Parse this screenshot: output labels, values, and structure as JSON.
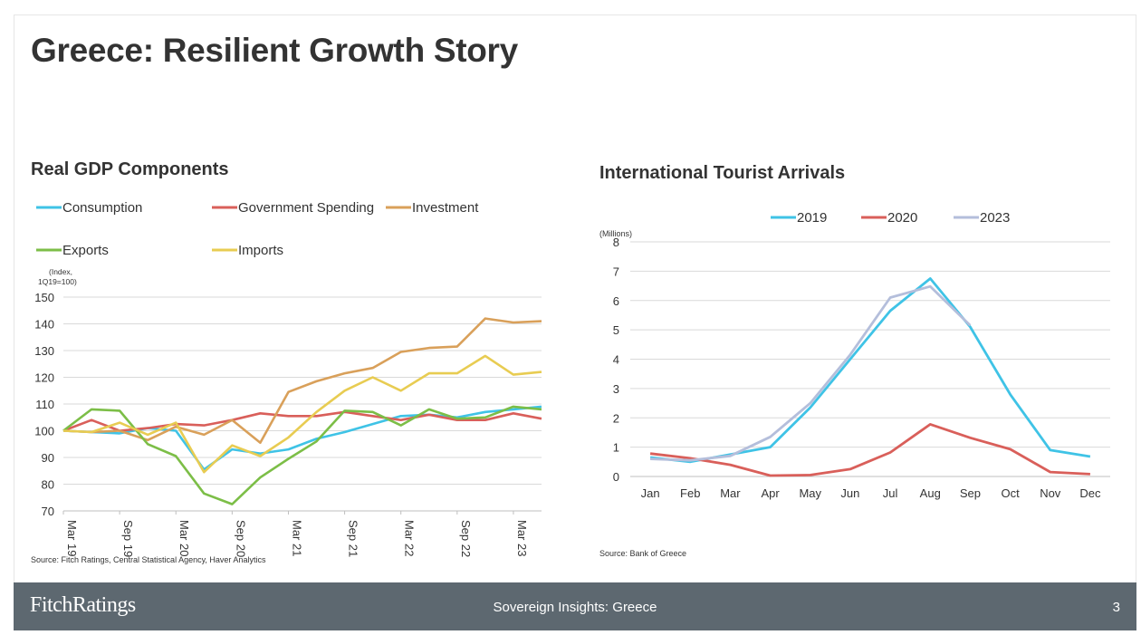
{
  "slide": {
    "title": "Greece: Resilient Growth Story",
    "footer_logo": "FitchRatings",
    "footer_center": "Sovereign Insights: Greece",
    "page_number": "3"
  },
  "chart_data": [
    {
      "type": "line",
      "title": "Real GDP Components",
      "ylabel_line1": "(Index,",
      "ylabel_line2": "1Q19=100)",
      "ylim": [
        70,
        150
      ],
      "yticks": [
        70,
        80,
        90,
        100,
        110,
        120,
        130,
        140,
        150
      ],
      "grid": true,
      "legend_position": "top",
      "categories": [
        "Mar 19",
        "Jun 19",
        "Sep 19",
        "Dec 19",
        "Mar 20",
        "Jun 20",
        "Sep 20",
        "Dec 20",
        "Mar 21",
        "Jun 21",
        "Sep 21",
        "Dec 21",
        "Mar 22",
        "Jun 22",
        "Sep 22",
        "Dec 22",
        "Mar 23",
        "Jun 23"
      ],
      "tick_labels": [
        "Mar 19",
        "Sep 19",
        "Mar 20",
        "Sep 20",
        "Mar 21",
        "Sep 21",
        "Mar 22",
        "Sep 22",
        "Mar 23"
      ],
      "tick_indices": [
        0,
        2,
        4,
        6,
        8,
        10,
        12,
        14,
        16
      ],
      "series": [
        {
          "name": "Consumption",
          "color": "#3fc3e6",
          "values": [
            100,
            99.5,
            99,
            101,
            100,
            85.5,
            93,
            91.5,
            93,
            97,
            99.5,
            102.5,
            105.5,
            106,
            105,
            107,
            108,
            109
          ]
        },
        {
          "name": "Government Spending",
          "color": "#d95f5a",
          "values": [
            100,
            104,
            100,
            101,
            102.5,
            102,
            104,
            106.5,
            105.5,
            105.5,
            107,
            105.5,
            104,
            106,
            104,
            104,
            106.5,
            104.5
          ]
        },
        {
          "name": "Investment",
          "color": "#d9a05a",
          "values": [
            100,
            99.5,
            100,
            96.5,
            101.5,
            98.5,
            104,
            95.5,
            114.5,
            118.5,
            121.5,
            123.5,
            129.5,
            131,
            131.5,
            142,
            140.5,
            141
          ]
        },
        {
          "name": "Exports",
          "color": "#7cbe47",
          "values": [
            100,
            108,
            107.5,
            95,
            90.5,
            76.5,
            72.5,
            82.5,
            89.5,
            96,
            107.5,
            107,
            102,
            108,
            104.5,
            105,
            109,
            108
          ]
        },
        {
          "name": "Imports",
          "color": "#e8cc52",
          "values": [
            100,
            99.5,
            103,
            98.5,
            103,
            84.5,
            94.5,
            90.5,
            97.5,
            107,
            115,
            120,
            115,
            121.5,
            121.5,
            128,
            121,
            122
          ]
        }
      ],
      "source": "Source: Fitch Ratings, Central Statistical Agency, Haver Analytics"
    },
    {
      "type": "line",
      "title": "International Tourist Arrivals",
      "ylabel": "(Millions)",
      "ylim": [
        0,
        8
      ],
      "yticks": [
        0,
        1,
        2,
        3,
        4,
        5,
        6,
        7,
        8
      ],
      "grid": true,
      "legend_position": "top",
      "categories": [
        "Jan",
        "Feb",
        "Mar",
        "Apr",
        "May",
        "Jun",
        "Jul",
        "Aug",
        "Sep",
        "Oct",
        "Nov",
        "Dec"
      ],
      "series": [
        {
          "name": "2019",
          "color": "#3fc3e6",
          "values": [
            0.65,
            0.5,
            0.75,
            1.0,
            2.35,
            4.0,
            5.65,
            6.75,
            5.1,
            2.8,
            0.9,
            0.68
          ]
        },
        {
          "name": "2020",
          "color": "#d95f5a",
          "values": [
            0.78,
            0.62,
            0.4,
            0.03,
            0.05,
            0.25,
            0.82,
            1.78,
            1.32,
            0.93,
            0.15,
            0.08
          ]
        },
        {
          "name": "2023",
          "color": "#b4bedb",
          "values": [
            0.6,
            0.55,
            0.7,
            1.35,
            2.5,
            4.15,
            6.1,
            6.48,
            5.15,
            null,
            null,
            null
          ]
        }
      ],
      "source": "Source: Bank of Greece"
    }
  ]
}
